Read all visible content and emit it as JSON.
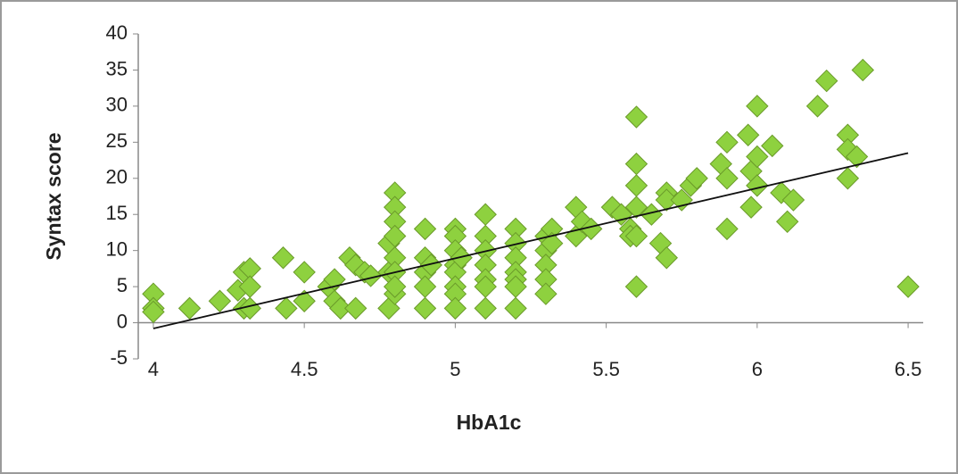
{
  "chart_data": {
    "type": "scatter",
    "x_label": "HbA1c",
    "y_label": "Syntax score",
    "xlim": [
      3.95,
      6.55
    ],
    "ylim": [
      -5,
      40
    ],
    "xticks": [
      4,
      4.5,
      5,
      5.5,
      6,
      6.5
    ],
    "yticks": [
      -5,
      0,
      5,
      10,
      15,
      20,
      25,
      30,
      35,
      40
    ],
    "color": "#8ed13f",
    "edge_color": "#6a9a2a",
    "x": [
      4.0,
      4.0,
      4.0,
      4.12,
      4.22,
      4.28,
      4.3,
      4.3,
      4.32,
      4.32,
      4.32,
      4.43,
      4.44,
      4.5,
      4.5,
      4.58,
      4.6,
      4.6,
      4.62,
      4.65,
      4.67,
      4.67,
      4.7,
      4.72,
      4.78,
      4.78,
      4.78,
      4.8,
      4.8,
      4.8,
      4.8,
      4.8,
      4.8,
      4.8,
      4.8,
      4.9,
      4.9,
      4.9,
      4.9,
      4.9,
      4.92,
      5.0,
      5.0,
      5.0,
      5.0,
      5.0,
      5.0,
      5.0,
      5.0,
      5.02,
      5.1,
      5.1,
      5.1,
      5.1,
      5.1,
      5.1,
      5.1,
      5.2,
      5.2,
      5.2,
      5.2,
      5.2,
      5.2,
      5.2,
      5.3,
      5.3,
      5.3,
      5.3,
      5.3,
      5.32,
      5.32,
      5.4,
      5.4,
      5.42,
      5.45,
      5.52,
      5.55,
      5.58,
      5.58,
      5.6,
      5.6,
      5.6,
      5.6,
      5.6,
      5.6,
      5.65,
      5.68,
      5.7,
      5.7,
      5.7,
      5.75,
      5.78,
      5.8,
      5.88,
      5.9,
      5.9,
      5.9,
      5.97,
      5.98,
      5.98,
      6.0,
      6.0,
      6.0,
      6.05,
      6.08,
      6.1,
      6.12,
      6.2,
      6.23,
      6.3,
      6.3,
      6.3,
      6.33,
      6.35,
      6.5
    ],
    "values": [
      4,
      2,
      1.5,
      2,
      3,
      4.5,
      7,
      2,
      7.5,
      5,
      2,
      9,
      2,
      7,
      3,
      5,
      3,
      6,
      2,
      9,
      2,
      8,
      7,
      6.5,
      7,
      11,
      2,
      18,
      16,
      14,
      12,
      9,
      7,
      4,
      5,
      13,
      9,
      7,
      5,
      2,
      8,
      13,
      12,
      10,
      8,
      7,
      5,
      4,
      2,
      9,
      15,
      12,
      10,
      8,
      6,
      5,
      2,
      13,
      11,
      9,
      7,
      6,
      5,
      2,
      12,
      10,
      8,
      6,
      4,
      13,
      11,
      16,
      12,
      14,
      13,
      16,
      15,
      13,
      12,
      28.5,
      22,
      19,
      16,
      12,
      5,
      15,
      11,
      18,
      17,
      9,
      17,
      19,
      20,
      22,
      25,
      20,
      13,
      26,
      16,
      21,
      30,
      23,
      19,
      24.5,
      18,
      14,
      17,
      30,
      33.5,
      26,
      24,
      20,
      23,
      35,
      5
    ],
    "trendline": {
      "x": [
        4,
        6.5
      ],
      "values": [
        -0.8,
        23.5
      ],
      "color": "#111111"
    }
  }
}
